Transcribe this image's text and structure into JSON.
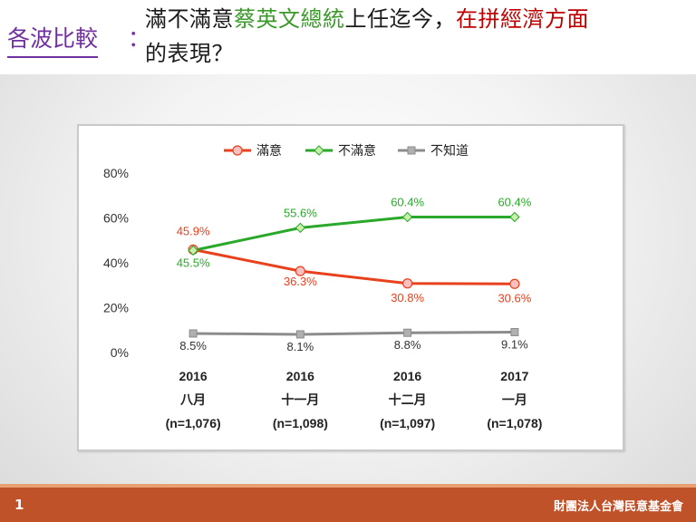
{
  "header": {
    "label": "各波比較",
    "colon": "：",
    "title_part1": "滿不滿意",
    "title_part2": "蔡英文總統",
    "title_part3": "上任迄今，",
    "title_part4": "在拼經濟方面",
    "title_part5": "的表現？"
  },
  "colors": {
    "satisfied": "#e8411e",
    "dissatisfied": "#2aa82a",
    "unknown": "#8c8c8c",
    "footer": "#c0522a",
    "label": "#7030a0"
  },
  "chart_data": {
    "type": "line",
    "categories": [
      [
        "2016",
        "八月",
        "(n=1,076)"
      ],
      [
        "2016",
        "十一月",
        "(n=1,098)"
      ],
      [
        "2016",
        "十二月",
        "(n=1,097)"
      ],
      [
        "2017",
        "一月",
        "(n=1,078)"
      ]
    ],
    "series": [
      {
        "name": "滿意",
        "values": [
          45.9,
          36.3,
          30.8,
          30.6
        ],
        "labels": [
          "45.9%",
          "36.3%",
          "30.8%",
          "30.6%"
        ],
        "color": "#e8411e",
        "marker": "circle"
      },
      {
        "name": "不滿意",
        "values": [
          45.5,
          55.6,
          60.4,
          60.4
        ],
        "labels": [
          "45.5%",
          "55.6%",
          "60.4%",
          "60.4%"
        ],
        "color": "#2aa82a",
        "marker": "diamond"
      },
      {
        "name": "不知道",
        "values": [
          8.5,
          8.1,
          8.8,
          9.1
        ],
        "labels": [
          "8.5%",
          "8.1%",
          "8.8%",
          "9.1%"
        ],
        "color": "#8c8c8c",
        "marker": "square"
      }
    ],
    "ylim": [
      0,
      80
    ],
    "yticks": [
      "0%",
      "20%",
      "40%",
      "60%",
      "80%"
    ],
    "grid": false,
    "legend": "top"
  },
  "footer": {
    "page_number": "1",
    "organization": "財團法人台灣民意基金會"
  }
}
